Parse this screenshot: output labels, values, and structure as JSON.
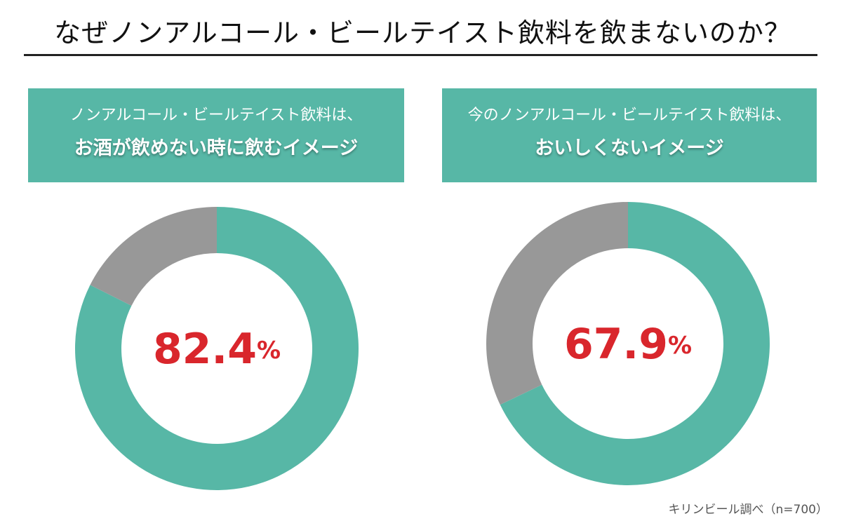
{
  "title": "なぜノンアルコール・ビールテイスト飲料を飲まないのか？",
  "source": "キリンビール調べ（n=700）",
  "colors": {
    "primary": "#57b7a6",
    "remainder": "#989898",
    "value_text": "#d9262c"
  },
  "chart_data": [
    {
      "type": "pie",
      "variant": "donut",
      "header_line1": "ノンアルコール・ビールテイスト飲料は、",
      "header_line2": "お酒が飲めない時に飲むイメージ",
      "value": 82.4,
      "remainder": 17.6,
      "value_label": "82.4",
      "unit": "%"
    },
    {
      "type": "pie",
      "variant": "donut",
      "header_line1": "今のノンアルコール・ビールテイスト飲料は、",
      "header_line2": "おいしくないイメージ",
      "value": 67.9,
      "remainder": 32.1,
      "value_label": "67.9",
      "unit": "%"
    }
  ]
}
